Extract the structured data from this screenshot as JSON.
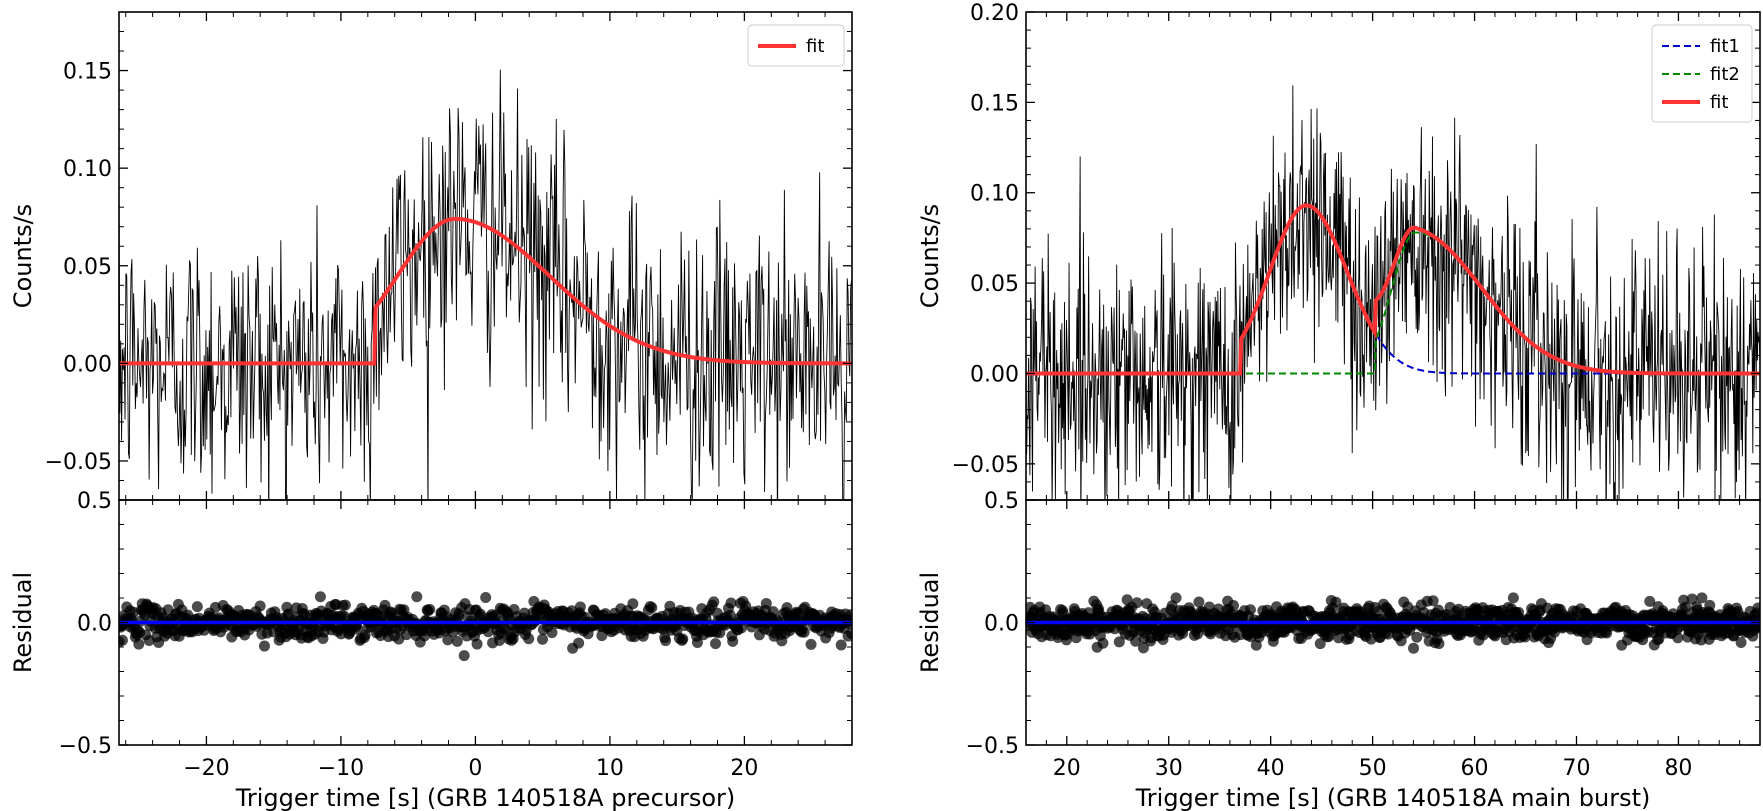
{
  "chart_data": [
    {
      "type": "line",
      "panel": "left-top",
      "xlim": [
        -26.5,
        28
      ],
      "ylim": [
        -0.07,
        0.18
      ],
      "xlabel": "",
      "ylabel": "Counts/s",
      "xticks": [
        -20,
        -10,
        0,
        10,
        20
      ],
      "yticks": [
        -0.05,
        0.0,
        0.05,
        0.1,
        0.15
      ],
      "ytick_labels": [
        "−0.05",
        "0.00",
        "0.05",
        "0.10",
        "0.15"
      ],
      "legend": {
        "placement": "top-right",
        "entries": [
          {
            "label": "fit",
            "color": "#ff3333",
            "style": "solid"
          }
        ]
      },
      "series": [
        {
          "kind": "counts",
          "color": "#000000",
          "x_range": [
            -26.5,
            28
          ],
          "step": 0.064,
          "noise_sigma": 0.035,
          "model": "fit"
        },
        {
          "name": "fit",
          "kind": "fred",
          "color": "#ff3333",
          "amplitude": 0.074,
          "start": -7.5,
          "peak": -1.5,
          "rise_width": 4.3,
          "decay_width": 7.0
        }
      ]
    },
    {
      "type": "scatter",
      "panel": "left-bottom",
      "xlim": [
        -26.5,
        28
      ],
      "ylim": [
        -0.5,
        0.5
      ],
      "xlabel": "Trigger time [s] (GRB 140518A precursor)",
      "ylabel": "Residual",
      "xticks": [
        -20,
        -10,
        0,
        10,
        20
      ],
      "xtick_labels": [
        "−20",
        "−10",
        "0",
        "10",
        "20"
      ],
      "yticks": [
        -0.5,
        0.0,
        0.5
      ],
      "ytick_labels": [
        "−0.5",
        "0.0",
        "0.5"
      ],
      "series": [
        {
          "kind": "residual-points",
          "color": "#000000",
          "x_range": [
            -26.5,
            28
          ],
          "step": 0.064,
          "sigma": 0.035
        },
        {
          "kind": "zero-line",
          "color": "#0000ff",
          "y": 0
        }
      ]
    },
    {
      "type": "line",
      "panel": "right-top",
      "xlim": [
        16,
        88
      ],
      "ylim": [
        -0.07,
        0.2
      ],
      "xlabel": "",
      "ylabel": "Counts/s",
      "xticks": [
        20,
        30,
        40,
        50,
        60,
        70,
        80
      ],
      "yticks": [
        -0.05,
        0.0,
        0.05,
        0.1,
        0.15,
        0.2
      ],
      "ytick_labels": [
        "−0.05",
        "0.00",
        "0.05",
        "0.10",
        "0.15",
        "0.20"
      ],
      "legend": {
        "placement": "top-right",
        "entries": [
          {
            "label": "fit1",
            "color": "#0000cc",
            "style": "dashed"
          },
          {
            "label": "fit2",
            "color": "#008800",
            "style": "dashed"
          },
          {
            "label": "fit",
            "color": "#ff3333",
            "style": "solid"
          }
        ]
      },
      "series": [
        {
          "kind": "counts",
          "color": "#000000",
          "x_range": [
            16,
            88
          ],
          "step": 0.064,
          "noise_sigma": 0.035,
          "model": "fit"
        },
        {
          "name": "fit1",
          "kind": "fred",
          "color": "#0000cc",
          "amplitude": 0.093,
          "start": 37.0,
          "peak": 43.5,
          "rise_width": 3.6,
          "decay_width": 4.0
        },
        {
          "name": "fit2",
          "kind": "fred",
          "color": "#008800",
          "amplitude": 0.078,
          "start": 50.3,
          "peak": 54.2,
          "rise_width": 2.3,
          "decay_width": 6.5
        },
        {
          "name": "fit",
          "kind": "sum",
          "color": "#ff3333",
          "components": [
            "fit1",
            "fit2"
          ]
        }
      ]
    },
    {
      "type": "scatter",
      "panel": "right-bottom",
      "xlim": [
        16,
        88
      ],
      "ylim": [
        -0.5,
        0.5
      ],
      "xlabel": "Trigger time [s] (GRB 140518A main burst)",
      "ylabel": "Residual",
      "xticks": [
        20,
        30,
        40,
        50,
        60,
        70,
        80
      ],
      "xtick_labels": [
        "20",
        "30",
        "40",
        "50",
        "60",
        "70",
        "80"
      ],
      "yticks": [
        -0.5,
        0.0,
        0.5
      ],
      "ytick_labels": [
        "−0.5",
        "0.0",
        "0.5"
      ],
      "series": [
        {
          "kind": "residual-points",
          "color": "#000000",
          "x_range": [
            16,
            88
          ],
          "step": 0.064,
          "sigma": 0.035
        },
        {
          "kind": "zero-line",
          "color": "#0000ff",
          "y": 0
        }
      ]
    }
  ]
}
